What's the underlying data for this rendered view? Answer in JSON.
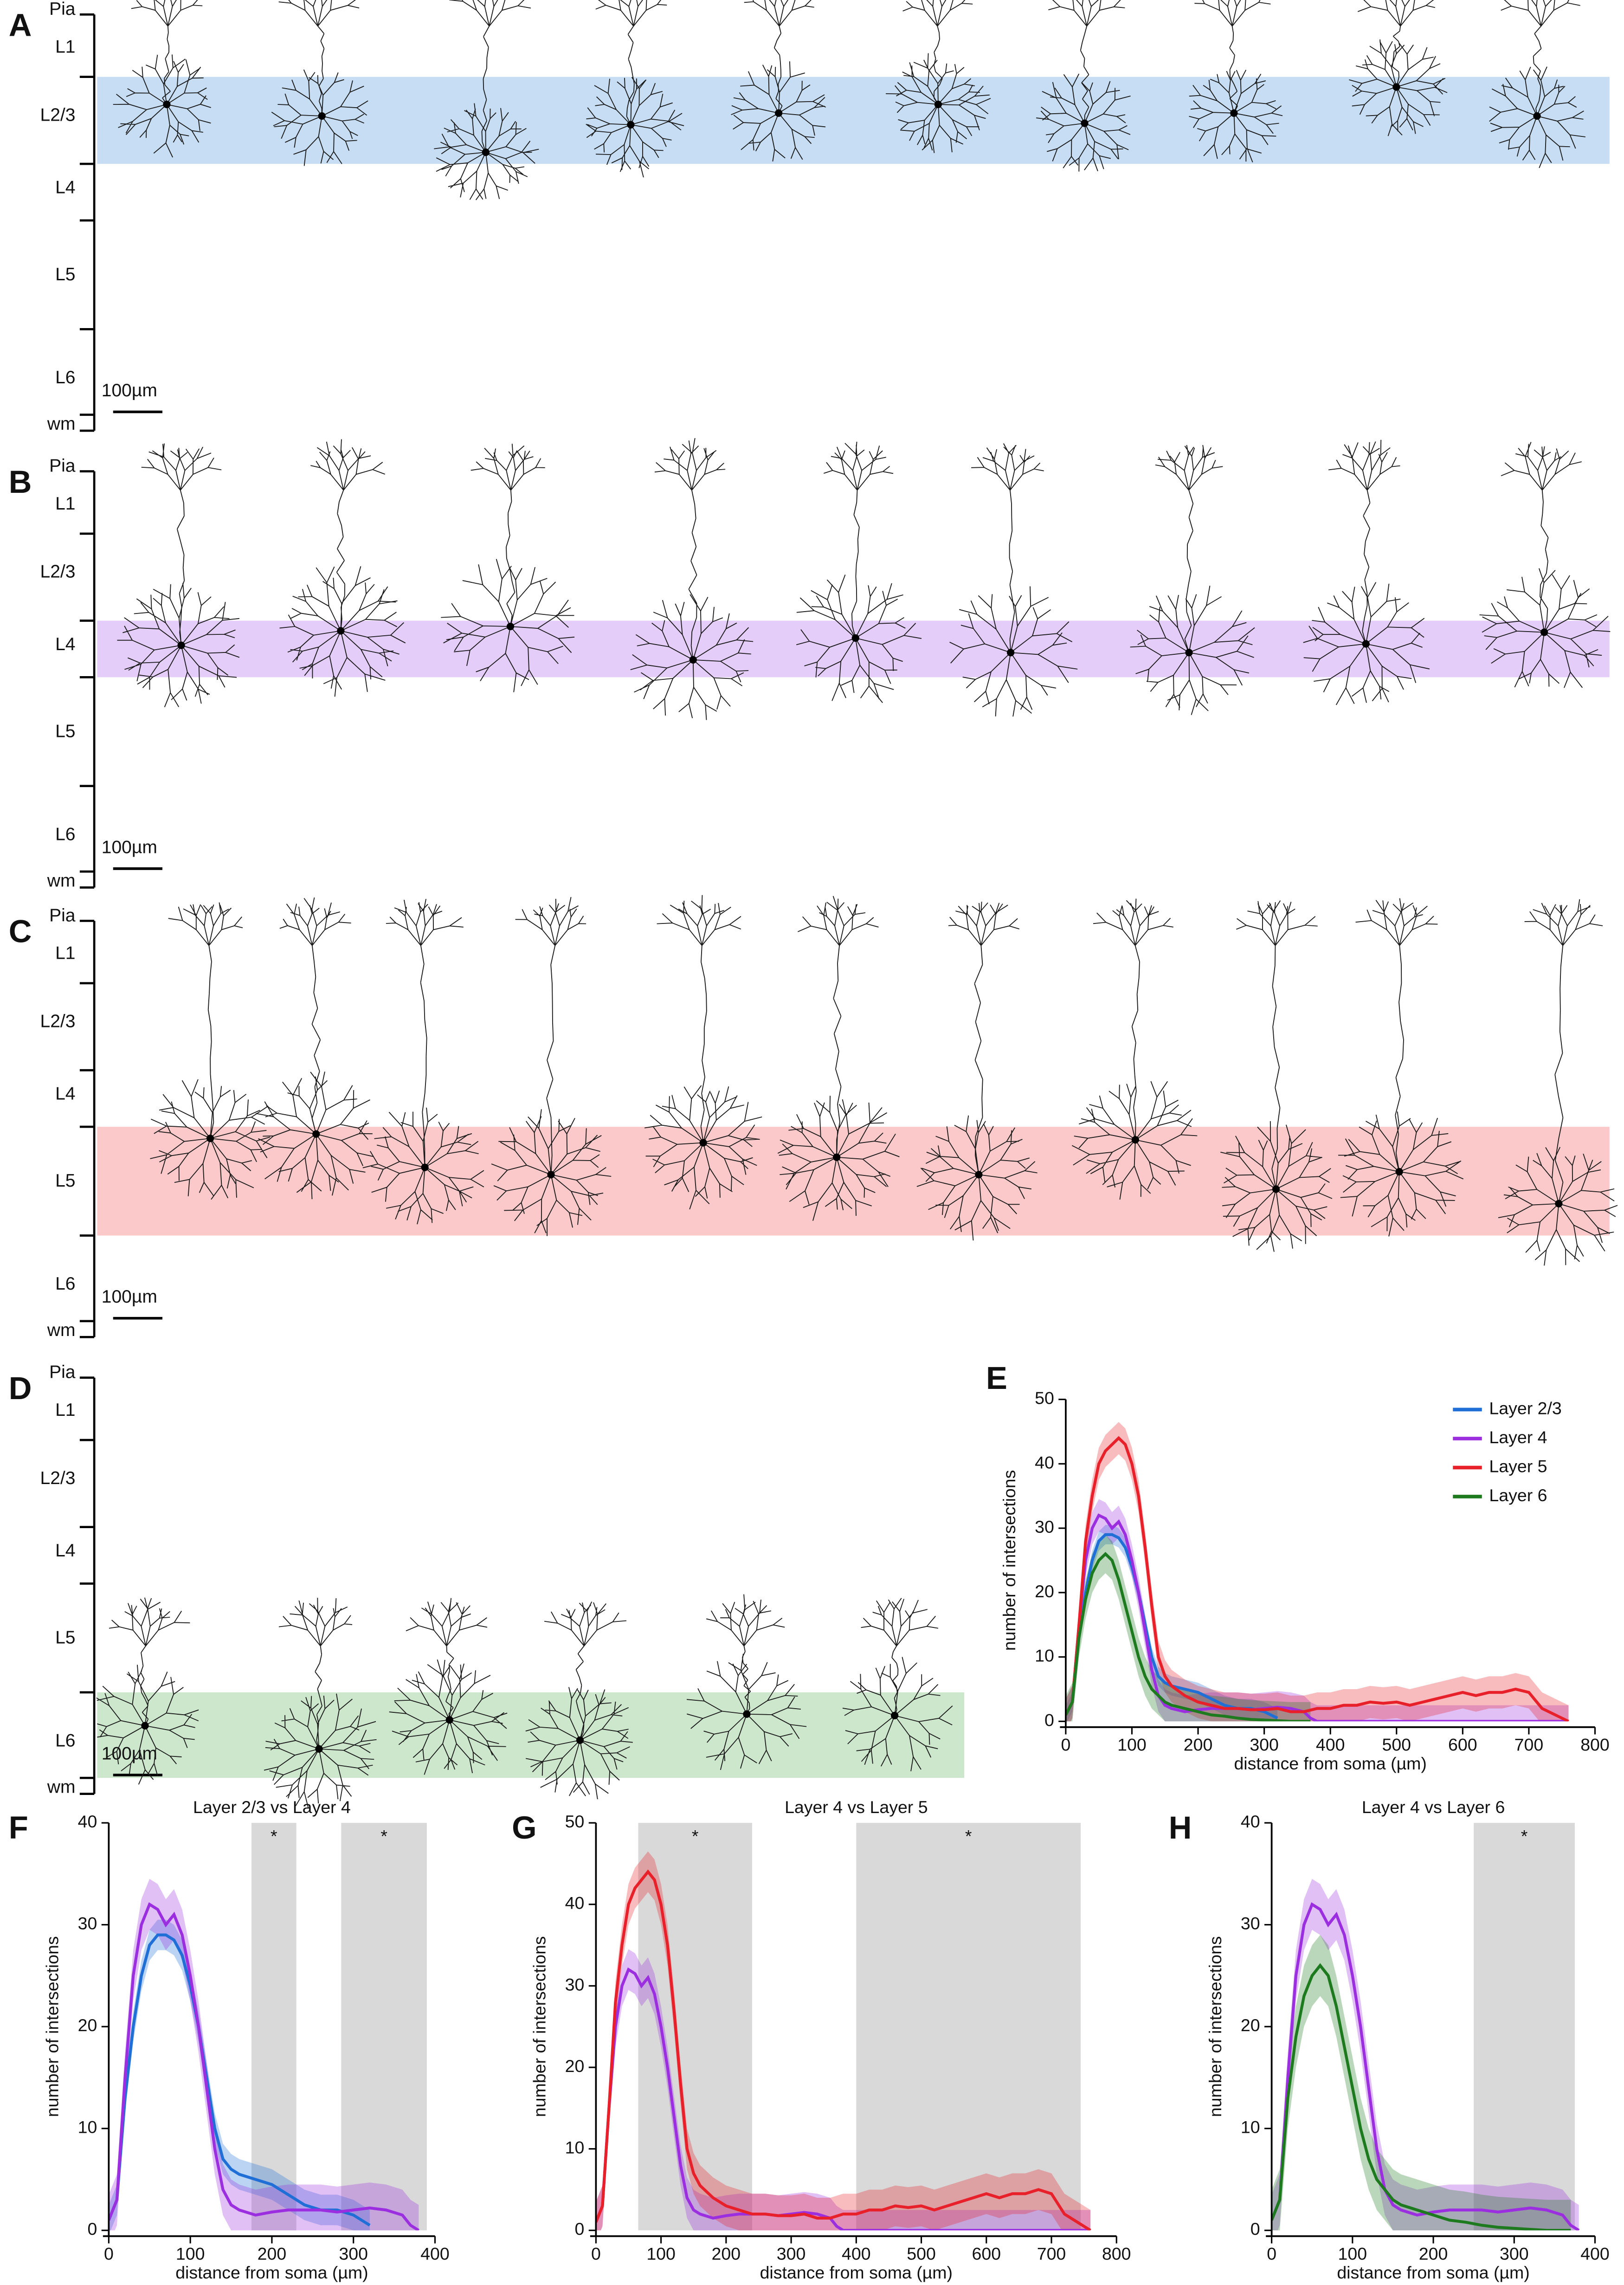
{
  "figure": {
    "panels": [
      {
        "letter": "A",
        "layers": [
          "Pia",
          "L1",
          "L2/3",
          "L4",
          "L5",
          "L6",
          "wm"
        ],
        "scale_bar": "100µm",
        "highlight_color": "#c6ddf3"
      },
      {
        "letter": "B",
        "layers": [
          "Pia",
          "L1",
          "L2/3",
          "L4",
          "L5",
          "L6",
          "wm"
        ],
        "scale_bar": "100µm",
        "highlight_color": "#e5cdfa"
      },
      {
        "letter": "C",
        "layers": [
          "Pia",
          "L1",
          "L2/3",
          "L4",
          "L5",
          "L6",
          "wm"
        ],
        "scale_bar": "100µm",
        "highlight_color": "#fbc9c9"
      },
      {
        "letter": "D",
        "layers": [
          "Pia",
          "L1",
          "L2/3",
          "L4",
          "L5",
          "L6",
          "wm"
        ],
        "scale_bar": "100µm",
        "highlight_color": "#cde7cd"
      }
    ]
  },
  "chart_data": [
    {
      "type": "line",
      "panel": "E",
      "x_label": "distance from soma (µm)",
      "y_label": "number of intersections",
      "xlim": [
        0,
        800
      ],
      "xticks": [
        0,
        100,
        200,
        300,
        400,
        500,
        600,
        700,
        800
      ],
      "ylim": [
        0,
        50
      ],
      "yticks": [
        0,
        10,
        20,
        30,
        40,
        50
      ],
      "legend": "top-right",
      "series": [
        {
          "name": "Layer 2/3",
          "color": "#1f6fd6",
          "error": 1.5,
          "x": [
            0,
            10,
            20,
            30,
            40,
            50,
            60,
            70,
            80,
            90,
            100,
            110,
            120,
            130,
            140,
            150,
            160,
            180,
            200,
            220,
            240,
            260,
            280,
            300,
            320
          ],
          "values": [
            1,
            3,
            13,
            20,
            25,
            28,
            29,
            29,
            28.5,
            27,
            24,
            20,
            15,
            10,
            7,
            6,
            5.5,
            5,
            4.5,
            3.5,
            2.5,
            2,
            2,
            1.5,
            0.5
          ]
        },
        {
          "name": "Layer 4",
          "color": "#9b2fe0",
          "error": 2.5,
          "x": [
            0,
            10,
            20,
            30,
            40,
            50,
            60,
            70,
            80,
            90,
            100,
            110,
            120,
            130,
            140,
            150,
            160,
            180,
            200,
            220,
            240,
            260,
            280,
            300,
            320,
            340,
            360,
            370,
            380,
            760
          ],
          "values": [
            1,
            3,
            15,
            25,
            30,
            32,
            31.5,
            30,
            31,
            29,
            25,
            20,
            14,
            8,
            4,
            2.5,
            2,
            1.5,
            1.8,
            2,
            2,
            2,
            1.8,
            2,
            2.2,
            2,
            1.5,
            0.5,
            0,
            0
          ]
        },
        {
          "name": "Layer 5",
          "color": "#e8202a",
          "error": 2.5,
          "x": [
            0,
            10,
            20,
            30,
            40,
            50,
            60,
            70,
            80,
            90,
            100,
            110,
            120,
            130,
            140,
            150,
            160,
            180,
            200,
            220,
            240,
            260,
            280,
            300,
            320,
            340,
            360,
            380,
            400,
            420,
            440,
            460,
            480,
            500,
            520,
            540,
            560,
            580,
            600,
            620,
            640,
            660,
            680,
            700,
            720,
            740,
            760
          ],
          "values": [
            1,
            3,
            15,
            28,
            35,
            40,
            42,
            43,
            44,
            43,
            40,
            35,
            27,
            18,
            10,
            7,
            5.5,
            4,
            3,
            2.5,
            2,
            2,
            1.8,
            1.8,
            2,
            1.5,
            1.5,
            2,
            2,
            2.5,
            2.5,
            3,
            2.8,
            3,
            2.5,
            3,
            3.5,
            4,
            4.5,
            4,
            4.5,
            4.5,
            5,
            4.5,
            2,
            1,
            0
          ]
        },
        {
          "name": "Layer 6",
          "color": "#1e7a1e",
          "error": 3,
          "x": [
            0,
            10,
            20,
            30,
            40,
            50,
            60,
            70,
            80,
            90,
            100,
            110,
            120,
            130,
            140,
            150,
            160,
            180,
            200,
            220,
            240,
            260,
            280,
            300,
            320,
            340,
            360,
            370
          ],
          "values": [
            1,
            3,
            13,
            19,
            23,
            25,
            26,
            25,
            22,
            18,
            14,
            10,
            7,
            5,
            4,
            3,
            2.5,
            2,
            1.5,
            1,
            0.8,
            0.5,
            0.3,
            0.2,
            0.1,
            0,
            0,
            0
          ]
        }
      ]
    },
    {
      "type": "line",
      "panel": "F",
      "title": "Layer 2/3 vs Layer 4",
      "x_label": "distance from soma (µm)",
      "y_label": "number of intersections",
      "xlim": [
        0,
        400
      ],
      "xticks": [
        0,
        100,
        200,
        300,
        400
      ],
      "ylim": [
        0,
        40
      ],
      "yticks": [
        0,
        10,
        20,
        30,
        40
      ],
      "shaded_regions": [
        {
          "range": [
            175,
            230
          ],
          "label": "*"
        },
        {
          "range": [
            285,
            390
          ],
          "label": "*"
        }
      ],
      "series": [
        {
          "color": "#1f6fd6",
          "error": 1.5,
          "x": [
            0,
            10,
            20,
            30,
            40,
            50,
            60,
            70,
            80,
            90,
            100,
            110,
            120,
            130,
            140,
            150,
            160,
            180,
            200,
            220,
            240,
            260,
            280,
            300,
            320
          ],
          "values": [
            1,
            3,
            13,
            20,
            25,
            28,
            29,
            29,
            28.5,
            27,
            24,
            20,
            15,
            10,
            7,
            6,
            5.5,
            5,
            4.5,
            3.5,
            2.5,
            2,
            2,
            1.5,
            0.5
          ]
        },
        {
          "color": "#9b2fe0",
          "error": 2.5,
          "x": [
            0,
            10,
            20,
            30,
            40,
            50,
            60,
            70,
            80,
            90,
            100,
            110,
            120,
            130,
            140,
            150,
            160,
            180,
            200,
            220,
            240,
            260,
            280,
            300,
            320,
            340,
            360,
            370,
            380
          ],
          "values": [
            1,
            3,
            15,
            25,
            30,
            32,
            31.5,
            30,
            31,
            29,
            25,
            20,
            14,
            8,
            4,
            2.5,
            2,
            1.5,
            1.8,
            2,
            2,
            2,
            1.8,
            2,
            2.2,
            2,
            1.5,
            0.5,
            0
          ]
        }
      ]
    },
    {
      "type": "line",
      "panel": "G",
      "title": "Layer 4 vs Layer 5",
      "x_label": "distance from soma (µm)",
      "y_label": "number of intersections",
      "xlim": [
        0,
        800
      ],
      "xticks": [
        0,
        100,
        200,
        300,
        400,
        500,
        600,
        700,
        800
      ],
      "ylim": [
        0,
        50
      ],
      "yticks": [
        0,
        10,
        20,
        30,
        40,
        50
      ],
      "shaded_regions": [
        {
          "range": [
            65,
            240
          ],
          "label": "*"
        },
        {
          "range": [
            400,
            745
          ],
          "label": "*"
        }
      ],
      "series": [
        {
          "color": "#9b2fe0",
          "error": 2.5,
          "x": [
            0,
            10,
            20,
            30,
            40,
            50,
            60,
            70,
            80,
            90,
            100,
            110,
            120,
            130,
            140,
            150,
            160,
            180,
            200,
            220,
            240,
            260,
            280,
            300,
            320,
            340,
            360,
            370,
            380,
            760
          ],
          "values": [
            1,
            3,
            15,
            25,
            30,
            32,
            31.5,
            30,
            31,
            29,
            25,
            20,
            14,
            8,
            4,
            2.5,
            2,
            1.5,
            1.8,
            2,
            2,
            2,
            1.8,
            2,
            2.2,
            2,
            1.5,
            0.5,
            0,
            0
          ]
        },
        {
          "color": "#e8202a",
          "error": 2.5,
          "x": [
            0,
            10,
            20,
            30,
            40,
            50,
            60,
            70,
            80,
            90,
            100,
            110,
            120,
            130,
            140,
            150,
            160,
            180,
            200,
            220,
            240,
            260,
            280,
            300,
            320,
            340,
            360,
            380,
            400,
            420,
            440,
            460,
            480,
            500,
            520,
            540,
            560,
            580,
            600,
            620,
            640,
            660,
            680,
            700,
            720,
            740,
            760
          ],
          "values": [
            1,
            3,
            15,
            28,
            35,
            40,
            42,
            43,
            44,
            43,
            40,
            35,
            27,
            18,
            10,
            7,
            5.5,
            4,
            3,
            2.5,
            2,
            2,
            1.8,
            1.8,
            2,
            1.5,
            1.5,
            2,
            2,
            2.5,
            2.5,
            3,
            2.8,
            3,
            2.5,
            3,
            3.5,
            4,
            4.5,
            4,
            4.5,
            4.5,
            5,
            4.5,
            2,
            1,
            0
          ]
        }
      ]
    },
    {
      "type": "line",
      "panel": "H",
      "title": "Layer 4 vs Layer 6",
      "x_label": "distance from soma (µm)",
      "y_label": "number of intersections",
      "xlim": [
        0,
        400
      ],
      "xticks": [
        0,
        100,
        200,
        300,
        400
      ],
      "ylim": [
        0,
        40
      ],
      "yticks": [
        0,
        10,
        20,
        30,
        40
      ],
      "shaded_regions": [
        {
          "range": [
            250,
            375
          ],
          "label": "*"
        }
      ],
      "series": [
        {
          "color": "#9b2fe0",
          "error": 2.5,
          "x": [
            0,
            10,
            20,
            30,
            40,
            50,
            60,
            70,
            80,
            90,
            100,
            110,
            120,
            130,
            140,
            150,
            160,
            180,
            200,
            220,
            240,
            260,
            280,
            300,
            320,
            340,
            360,
            370,
            380
          ],
          "values": [
            1,
            3,
            15,
            25,
            30,
            32,
            31.5,
            30,
            31,
            29,
            25,
            20,
            14,
            8,
            4,
            2.5,
            2,
            1.5,
            1.8,
            2,
            2,
            2,
            1.8,
            2,
            2.2,
            2,
            1.5,
            0.5,
            0
          ]
        },
        {
          "color": "#1e7a1e",
          "error": 3,
          "x": [
            0,
            10,
            20,
            30,
            40,
            50,
            60,
            70,
            80,
            90,
            100,
            110,
            120,
            130,
            140,
            150,
            160,
            180,
            200,
            220,
            240,
            260,
            280,
            300,
            320,
            340,
            360,
            370
          ],
          "values": [
            1,
            3,
            13,
            19,
            23,
            25,
            26,
            25,
            22,
            18,
            14,
            10,
            7,
            5,
            4,
            3,
            2.5,
            2,
            1.5,
            1,
            0.8,
            0.5,
            0.3,
            0.2,
            0.1,
            0,
            0,
            0
          ]
        }
      ]
    }
  ]
}
